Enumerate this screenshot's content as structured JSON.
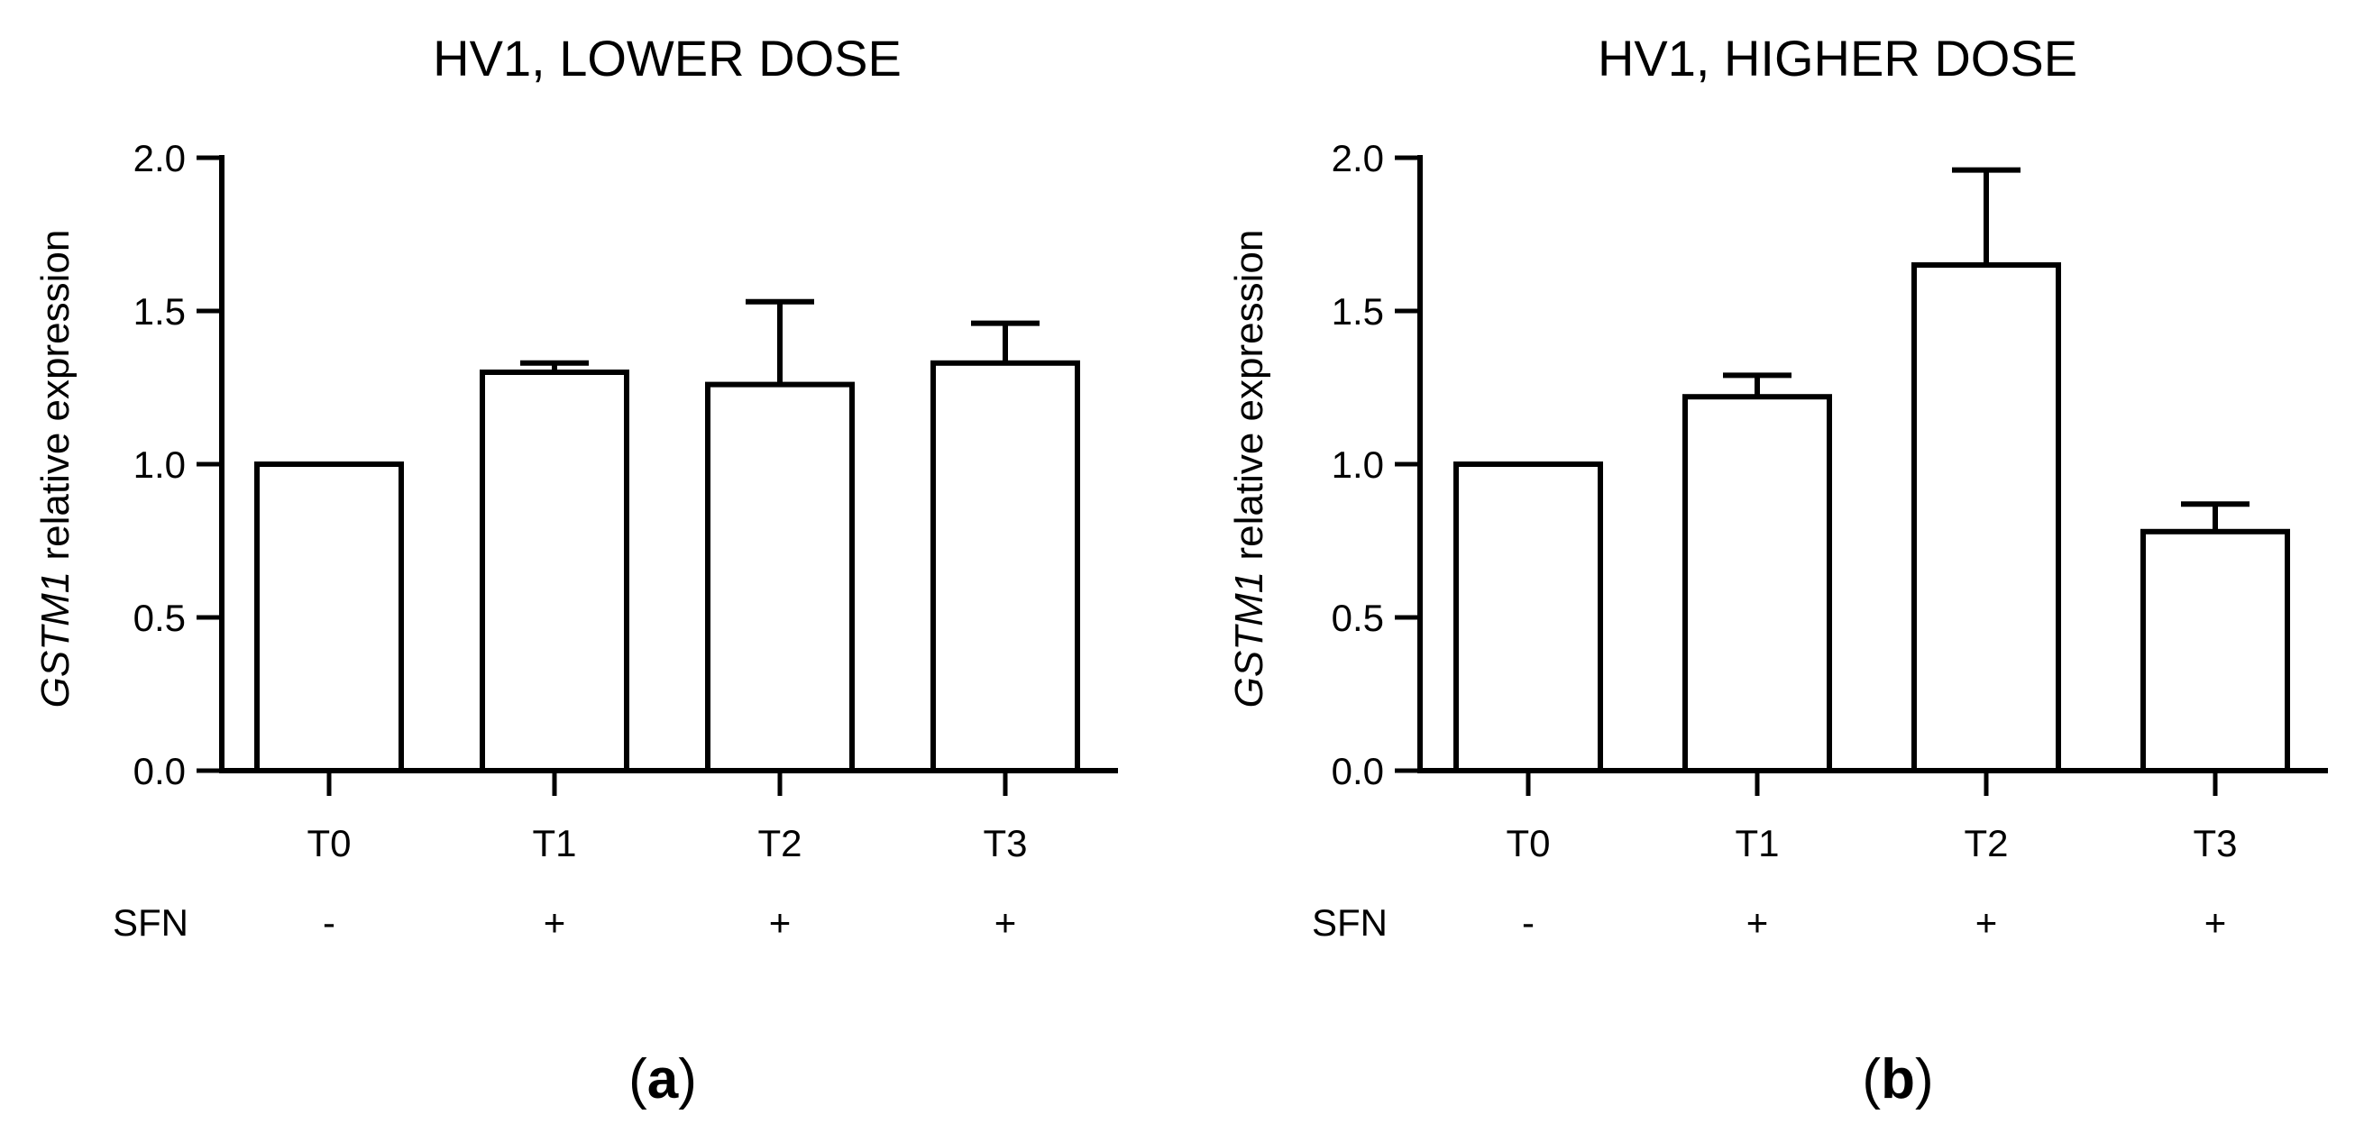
{
  "chart_data": [
    {
      "type": "bar",
      "panel": "(a)",
      "panel_open": "(",
      "panel_letter": "a",
      "panel_close": ")",
      "title": "HV1, LOWER DOSE",
      "ylabel_gene": "GSTM1",
      "ylabel_rest": " relative expression",
      "categories": [
        "T0",
        "T1",
        "T2",
        "T3"
      ],
      "values": [
        1.0,
        1.3,
        1.26,
        1.33
      ],
      "errors": [
        0.0,
        0.03,
        0.27,
        0.13
      ],
      "ylim": [
        0,
        2.0
      ],
      "yticks": [
        "0.0",
        "0.5",
        "1.0",
        "1.5",
        "2.0"
      ],
      "treatment_label": "SFN",
      "treatment": [
        "-",
        "+",
        "+",
        "+"
      ]
    },
    {
      "type": "bar",
      "panel": "(b)",
      "panel_open": "(",
      "panel_letter": "b",
      "panel_close": ")",
      "title": "HV1, HIGHER DOSE",
      "ylabel_gene": "GSTM1",
      "ylabel_rest": " relative expression",
      "categories": [
        "T0",
        "T1",
        "T2",
        "T3"
      ],
      "values": [
        1.0,
        1.22,
        1.65,
        0.78
      ],
      "errors": [
        0.0,
        0.07,
        0.31,
        0.09
      ],
      "ylim": [
        0,
        2.0
      ],
      "yticks": [
        "0.0",
        "0.5",
        "1.0",
        "1.5",
        "2.0"
      ],
      "treatment_label": "SFN",
      "treatment": [
        "-",
        "+",
        "+",
        "+"
      ]
    }
  ]
}
